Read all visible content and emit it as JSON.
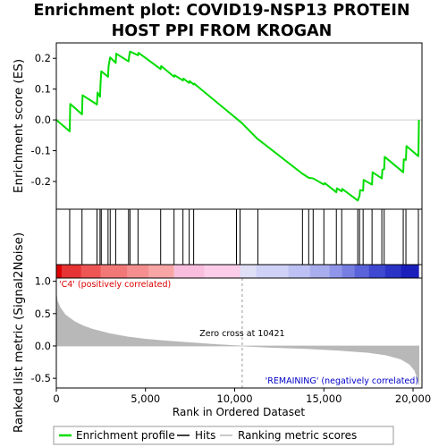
{
  "chart_data": {
    "type": "line",
    "title_lines": [
      "Enrichment plot: COVID19-NSP13 PROTEIN",
      "HOST PPI FROM KROGAN"
    ],
    "xlabel": "Rank in Ordered Dataset",
    "xlim": [
      0,
      20500
    ],
    "x_ticks": [
      0,
      5000,
      10000,
      15000,
      20000
    ],
    "x_tick_labels": [
      "0",
      "5,000",
      "10,000",
      "15,000",
      "20,000"
    ],
    "enrichment": {
      "ylabel": "Enrichment score (ES)",
      "ylim": [
        -0.29,
        0.25
      ],
      "y_ticks": [
        0.2,
        0.1,
        0.0,
        -0.1,
        -0.2
      ],
      "y_tick_labels": [
        "0.2",
        "0.1",
        "0.0",
        "-0.1",
        "-0.2"
      ],
      "color": "#00dd00",
      "points": [
        [
          0,
          0.0
        ],
        [
          750,
          -0.037
        ],
        [
          780,
          0.052
        ],
        [
          1440,
          0.018
        ],
        [
          1470,
          0.08
        ],
        [
          2280,
          0.05
        ],
        [
          2310,
          0.089
        ],
        [
          2450,
          0.075
        ],
        [
          2480,
          0.12
        ],
        [
          2520,
          0.158
        ],
        [
          2900,
          0.14
        ],
        [
          2930,
          0.175
        ],
        [
          3020,
          0.203
        ],
        [
          3330,
          0.185
        ],
        [
          3360,
          0.215
        ],
        [
          4050,
          0.19
        ],
        [
          4080,
          0.205
        ],
        [
          4130,
          0.222
        ],
        [
          4580,
          0.21
        ],
        [
          4610,
          0.218
        ],
        [
          5850,
          0.165
        ],
        [
          5880,
          0.175
        ],
        [
          6600,
          0.14
        ],
        [
          6630,
          0.145
        ],
        [
          7100,
          0.128
        ],
        [
          7130,
          0.134
        ],
        [
          7450,
          0.12
        ],
        [
          7480,
          0.126
        ],
        [
          7700,
          0.115
        ],
        [
          7730,
          0.118
        ],
        [
          10400,
          -0.01
        ],
        [
          11250,
          -0.06
        ],
        [
          13800,
          -0.175
        ],
        [
          14150,
          -0.188
        ],
        [
          14400,
          -0.19
        ],
        [
          15000,
          -0.21
        ],
        [
          15050,
          -0.205
        ],
        [
          15700,
          -0.235
        ],
        [
          15730,
          -0.222
        ],
        [
          16000,
          -0.232
        ],
        [
          16030,
          -0.224
        ],
        [
          16900,
          -0.262
        ],
        [
          17000,
          -0.247
        ],
        [
          17030,
          -0.228
        ],
        [
          17200,
          -0.23
        ],
        [
          17230,
          -0.195
        ],
        [
          17700,
          -0.21
        ],
        [
          17730,
          -0.17
        ],
        [
          18250,
          -0.19
        ],
        [
          18280,
          -0.162
        ],
        [
          18380,
          -0.16
        ],
        [
          18410,
          -0.12
        ],
        [
          19450,
          -0.17
        ],
        [
          19480,
          -0.128
        ],
        [
          19600,
          -0.13
        ],
        [
          19630,
          -0.085
        ],
        [
          20300,
          -0.118
        ],
        [
          20330,
          0.0
        ]
      ]
    },
    "hits": {
      "positions": [
        750,
        1440,
        2280,
        2450,
        2520,
        2900,
        3020,
        3330,
        4050,
        4130,
        4580,
        5850,
        6600,
        7100,
        7450,
        7700,
        10100,
        10300,
        11300,
        13800,
        14150,
        14400,
        15000,
        15700,
        16000,
        16900,
        17000,
        17200,
        17700,
        18250,
        18380,
        19450,
        19600,
        20300
      ],
      "color": "#000000"
    },
    "ranking_metric": {
      "ylabel": "Ranked list metric (Signal2Noise)",
      "ylim": [
        -0.65,
        1.05
      ],
      "y_ticks": [
        1.0,
        0.5,
        0.0,
        -0.5
      ],
      "y_tick_labels": [
        "1.0",
        "0.5",
        "0.0",
        "-0.5"
      ],
      "color": "#b8b8b8",
      "curve": [
        [
          0,
          0.8
        ],
        [
          50,
          0.7
        ],
        [
          200,
          0.6
        ],
        [
          500,
          0.48
        ],
        [
          1000,
          0.38
        ],
        [
          1500,
          0.31
        ],
        [
          2000,
          0.26
        ],
        [
          3000,
          0.19
        ],
        [
          4000,
          0.14
        ],
        [
          5000,
          0.105
        ],
        [
          6000,
          0.08
        ],
        [
          7000,
          0.06
        ],
        [
          8000,
          0.04
        ],
        [
          9000,
          0.02
        ],
        [
          10421,
          0.0
        ],
        [
          12000,
          -0.02
        ],
        [
          14000,
          -0.04
        ],
        [
          16000,
          -0.07
        ],
        [
          17500,
          -0.1
        ],
        [
          18500,
          -0.14
        ],
        [
          19300,
          -0.2
        ],
        [
          19800,
          -0.28
        ],
        [
          20100,
          -0.38
        ],
        [
          20250,
          -0.5
        ],
        [
          20330,
          -0.6
        ]
      ],
      "zero_cross_label": "Zero cross at 10421",
      "zero_cross_rank": 10421,
      "pos_label": "'C4' (positively correlated)",
      "neg_label": "'REMAINING' (negatively correlated)",
      "pos_label_color": "#dd0000",
      "neg_label_color": "#0000cc"
    },
    "color_bar": {
      "segments": [
        [
          0,
          300,
          "#dd0000"
        ],
        [
          300,
          1400,
          "#e63333"
        ],
        [
          1400,
          2500,
          "#ee5555"
        ],
        [
          2500,
          4000,
          "#f27777"
        ],
        [
          4000,
          5200,
          "#f58f8f"
        ],
        [
          5200,
          6600,
          "#f7a5a5"
        ],
        [
          6600,
          8300,
          "#f9bddd"
        ],
        [
          8300,
          10300,
          "#fbcde8"
        ],
        [
          10300,
          11200,
          "#dfe0f6"
        ],
        [
          11200,
          13000,
          "#cfd2f6"
        ],
        [
          13000,
          14200,
          "#bcc0f2"
        ],
        [
          14200,
          15300,
          "#a8adee"
        ],
        [
          15300,
          16000,
          "#8f95e8"
        ],
        [
          16000,
          16700,
          "#767ee2"
        ],
        [
          16700,
          17500,
          "#5a63d9"
        ],
        [
          17500,
          18400,
          "#3f48d1"
        ],
        [
          18400,
          19300,
          "#2a33c6"
        ],
        [
          19300,
          20300,
          "#1a1fbb"
        ],
        [
          20300,
          20330,
          "#0000aa"
        ]
      ]
    },
    "legend": [
      {
        "label": "Enrichment profile",
        "color": "#00dd00"
      },
      {
        "label": "Hits",
        "color": "#000000"
      },
      {
        "label": "Ranking metric scores",
        "color": "#b8b8b8"
      }
    ]
  }
}
